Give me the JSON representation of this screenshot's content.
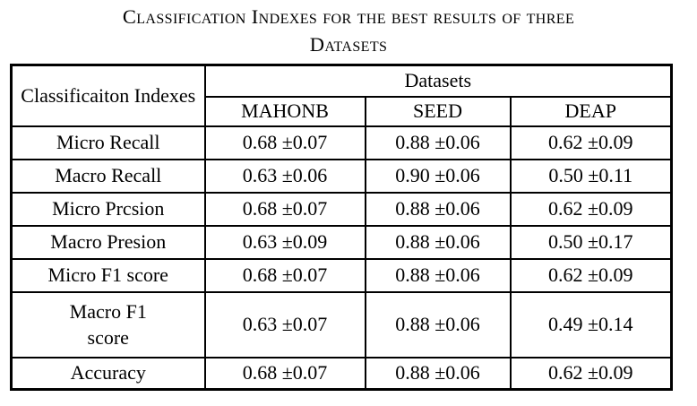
{
  "caption": {
    "line1": "Classification Indexes for the best results of three",
    "line2": "Datasets"
  },
  "table": {
    "corner_header": "Classificaiton Indexes",
    "datasets_header": "Datasets",
    "columns": [
      "MAHONB",
      "SEED",
      "DEAP"
    ],
    "rows": [
      {
        "label": "Micro Recall",
        "values": [
          "0.68 ±0.07",
          "0.88 ±0.06",
          "0.62 ±0.09"
        ]
      },
      {
        "label": "Macro Recall",
        "values": [
          "0.63 ±0.06",
          "0.90 ±0.06",
          "0.50 ±0.11"
        ]
      },
      {
        "label": "Micro Prcsion",
        "values": [
          "0.68 ±0.07",
          "0.88 ±0.06",
          "0.62 ±0.09"
        ]
      },
      {
        "label": "Macro Presion",
        "values": [
          "0.63 ±0.09",
          "0.88 ±0.06",
          "0.50 ±0.17"
        ]
      },
      {
        "label": "Micro F1 score",
        "values": [
          "0.68 ±0.07",
          "0.88 ±0.06",
          "0.62 ±0.09"
        ]
      },
      {
        "label": "Macro F1 score",
        "values": [
          "0.63 ±0.07",
          "0.88 ±0.06",
          "0.49 ±0.14"
        ]
      },
      {
        "label": "Accuracy",
        "values": [
          "0.68 ±0.07",
          "0.88 ±0.06",
          "0.62 ±0.09"
        ]
      }
    ]
  }
}
